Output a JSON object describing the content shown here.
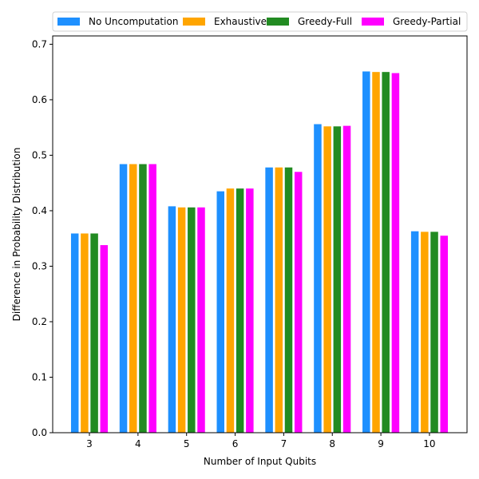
{
  "chart_data": {
    "type": "bar",
    "xlabel": "Number of Input Qubits",
    "ylabel": "Difference in Probability Distribution",
    "categories": [
      "3",
      "4",
      "5",
      "6",
      "7",
      "8",
      "9",
      "10"
    ],
    "ylim": [
      0,
      0.715
    ],
    "yticks": [
      "0.0",
      "0.1",
      "0.2",
      "0.3",
      "0.4",
      "0.5",
      "0.6",
      "0.7"
    ],
    "grid": false,
    "legend_position": "top",
    "series": [
      {
        "name": "No Uncomputation",
        "color": "#1e90ff",
        "values": [
          0.359,
          0.484,
          0.408,
          0.435,
          0.478,
          0.556,
          0.651,
          0.363
        ]
      },
      {
        "name": "Exhaustive",
        "color": "#ffa500",
        "values": [
          0.359,
          0.484,
          0.406,
          0.44,
          0.478,
          0.552,
          0.65,
          0.362
        ]
      },
      {
        "name": "Greedy-Full",
        "color": "#228b22",
        "values": [
          0.359,
          0.484,
          0.406,
          0.44,
          0.478,
          0.552,
          0.65,
          0.362
        ]
      },
      {
        "name": "Greedy-Partial",
        "color": "#ff00ff",
        "values": [
          0.338,
          0.484,
          0.406,
          0.44,
          0.47,
          0.553,
          0.648,
          0.355
        ]
      }
    ]
  }
}
